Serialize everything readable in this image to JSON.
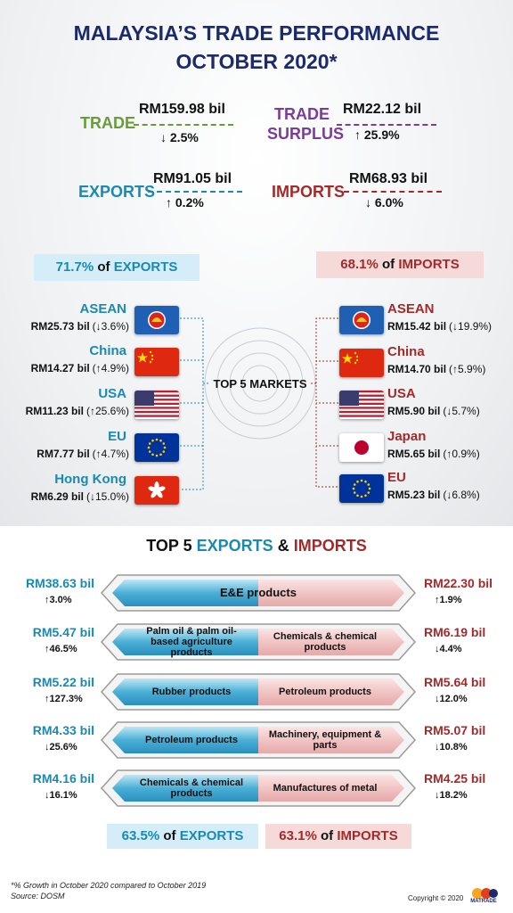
{
  "header": {
    "title_line1": "MALAYSIA’S TRADE PERFORMANCE",
    "title_line2": "OCTOBER 2020*"
  },
  "summary": {
    "trade": {
      "label": "TRADE",
      "value": "RM159.98 bil",
      "change": "↓ 2.5%"
    },
    "surplus": {
      "label_line1": "TRADE",
      "label_line2": "SURPLUS",
      "value": "RM22.12 bil",
      "change": "↑ 25.9%"
    },
    "exports": {
      "label": "EXPORTS",
      "value": "RM91.05 bil",
      "change": "↑ 0.2%"
    },
    "imports": {
      "label": "IMPORTS",
      "value": "RM68.93 bil",
      "change": "↓ 6.0%"
    }
  },
  "markets": {
    "center_label": "TOP 5 MARKETS",
    "export_share": {
      "share": "71.7%",
      "joiner": "of",
      "label": "EXPORTS"
    },
    "import_share": {
      "share": "68.1%",
      "joiner": "of",
      "label": "IMPORTS"
    },
    "exports": [
      {
        "name": "ASEAN",
        "value": "RM25.73 bil",
        "change": "(↓3.6%)",
        "flag": "asean"
      },
      {
        "name": "China",
        "value": "RM14.27 bil",
        "change": "(↑4.9%)",
        "flag": "china"
      },
      {
        "name": "USA",
        "value": "RM11.23 bil",
        "change": "(↑25.6%)",
        "flag": "usa"
      },
      {
        "name": "EU",
        "value": "RM7.77 bil",
        "change": "(↑4.7%)",
        "flag": "eu"
      },
      {
        "name": "Hong Kong",
        "value": "RM6.29 bil",
        "change": "(↓15.0%)",
        "flag": "hk"
      }
    ],
    "imports": [
      {
        "name": "ASEAN",
        "value": "RM15.42 bil",
        "change": "(↓19.9%)",
        "flag": "asean"
      },
      {
        "name": "China",
        "value": "RM14.70 bil",
        "change": "(↑5.9%)",
        "flag": "china"
      },
      {
        "name": "USA",
        "value": "RM5.90 bil",
        "change": "(↓5.7%)",
        "flag": "usa"
      },
      {
        "name": "Japan",
        "value": "RM5.65 bil",
        "change": "(↑0.9%)",
        "flag": "japan"
      },
      {
        "name": "EU",
        "value": "RM5.23 bil",
        "change": "(↓6.8%)",
        "flag": "eu"
      }
    ]
  },
  "products": {
    "title": {
      "prefix": "TOP 5",
      "exports": "EXPORTS",
      "amp": "&",
      "imports": "IMPORTS"
    },
    "rows": [
      {
        "export_value": "RM38.63 bil",
        "export_change": "↑3.0%",
        "export_product": "E&E products",
        "import_product": "",
        "import_value": "RM22.30 bil",
        "import_change": "↑1.9%"
      },
      {
        "export_value": "RM5.47 bil",
        "export_change": "↑46.5%",
        "export_product": "Palm oil & palm oil-based agriculture products",
        "import_product": "Chemicals & chemical products",
        "import_value": "RM6.19 bil",
        "import_change": "↓4.4%"
      },
      {
        "export_value": "RM5.22 bil",
        "export_change": "↑127.3%",
        "export_product": "Rubber products",
        "import_product": "Petroleum products",
        "import_value": "RM5.64 bil",
        "import_change": "↓12.0%"
      },
      {
        "export_value": "RM4.33 bil",
        "export_change": "↓25.6%",
        "export_product": "Petroleum products",
        "import_product": "Machinery, equipment & parts",
        "import_value": "RM5.07 bil",
        "import_change": "↓10.8%"
      },
      {
        "export_value": "RM4.16 bil",
        "export_change": "↓16.1%",
        "export_product": "Chemicals & chemical products",
        "import_product": "Manufactures of metal",
        "import_value": "RM4.25 bil",
        "import_change": "↓18.2%"
      }
    ],
    "export_share": {
      "share": "63.5%",
      "joiner": "of",
      "label": "EXPORTS"
    },
    "import_share": {
      "share": "63.1%",
      "joiner": "of",
      "label": "IMPORTS"
    }
  },
  "footer": {
    "note": "*% Growth in October 2020 compared to October 2019",
    "source": "Source: DOSM",
    "copyright": "Copyright © 2020",
    "logo": "MATRADE"
  }
}
